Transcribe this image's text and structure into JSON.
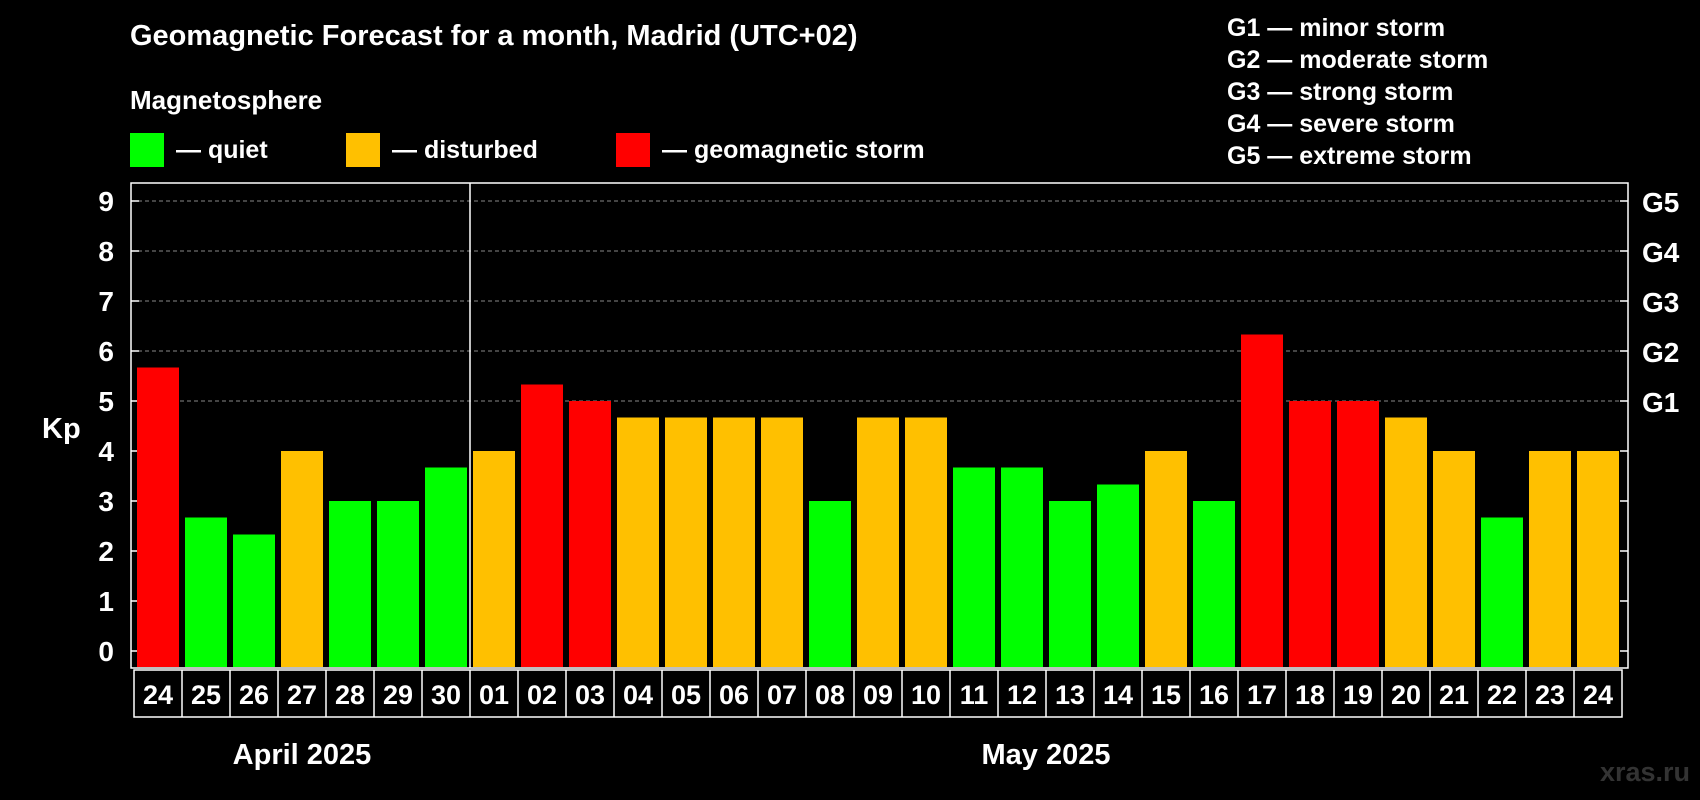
{
  "title": "Geomagnetic Forecast for a month, Madrid (UTC+02)",
  "subtitle": "Magnetosphere",
  "legend": [
    {
      "label": "— quiet",
      "color": "#00ff00"
    },
    {
      "label": "— disturbed",
      "color": "#ffc000"
    },
    {
      "label": "— geomagnetic storm",
      "color": "#ff0000"
    }
  ],
  "storm_levels": [
    "G1 — minor storm",
    "G2 — moderate storm",
    "G3 — strong storm",
    "G4 — severe storm",
    "G5 — extreme storm"
  ],
  "watermark": "xras.ru",
  "chart_data": {
    "type": "bar",
    "title": "Geomagnetic Forecast for a month, Madrid (UTC+02)",
    "ylabel": "Kp",
    "ylim": [
      0,
      9
    ],
    "yticks": [
      "0",
      "1",
      "2",
      "3",
      "4",
      "5",
      "6",
      "7",
      "8",
      "9"
    ],
    "right_axis_labels": [
      {
        "value": 5,
        "label": "G1"
      },
      {
        "value": 6,
        "label": "G2"
      },
      {
        "value": 7,
        "label": "G3"
      },
      {
        "value": 8,
        "label": "G4"
      },
      {
        "value": 9,
        "label": "G5"
      }
    ],
    "categories": [
      "24",
      "25",
      "26",
      "27",
      "28",
      "29",
      "30",
      "01",
      "02",
      "03",
      "04",
      "05",
      "06",
      "07",
      "08",
      "09",
      "10",
      "11",
      "12",
      "13",
      "14",
      "15",
      "16",
      "17",
      "18",
      "19",
      "20",
      "21",
      "22",
      "23",
      "24"
    ],
    "values": [
      5.67,
      2.67,
      2.33,
      4.0,
      3.0,
      3.0,
      3.67,
      4.0,
      5.33,
      5.0,
      4.67,
      4.67,
      4.67,
      4.67,
      3.0,
      4.67,
      4.67,
      3.67,
      3.67,
      3.0,
      3.33,
      4.0,
      3.0,
      6.33,
      5.0,
      5.0,
      4.67,
      4.0,
      2.67,
      4.0,
      4.0
    ],
    "status": [
      "storm",
      "quiet",
      "quiet",
      "disturbed",
      "quiet",
      "quiet",
      "quiet",
      "disturbed",
      "storm",
      "storm",
      "disturbed",
      "disturbed",
      "disturbed",
      "disturbed",
      "quiet",
      "disturbed",
      "disturbed",
      "quiet",
      "quiet",
      "quiet",
      "quiet",
      "disturbed",
      "quiet",
      "storm",
      "storm",
      "storm",
      "disturbed",
      "disturbed",
      "quiet",
      "disturbed",
      "disturbed"
    ],
    "status_colors": {
      "quiet": "#00ff00",
      "disturbed": "#ffc000",
      "storm": "#ff0000"
    },
    "months": [
      {
        "label": "April 2025",
        "days": 7
      },
      {
        "label": "May 2025",
        "days": 24
      }
    ],
    "grid": true
  }
}
